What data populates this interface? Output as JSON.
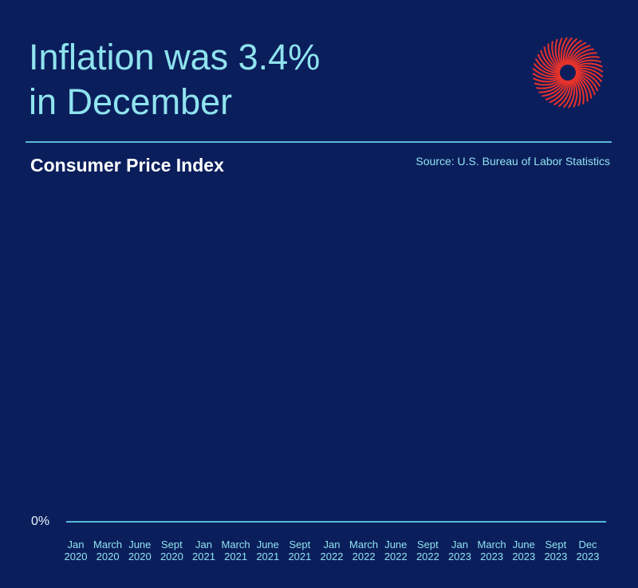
{
  "headline": {
    "line1": "Inflation was 3.4%",
    "line2": "in December"
  },
  "subtitle": "Consumer Price Index",
  "source": "Source: U.S. Bureau of Labor Statistics",
  "logo_icon": "red-radial-burst-logo",
  "colors": {
    "background": "#0b1e5c",
    "text_accent": "#8fe3ee",
    "rule": "#58b8d8",
    "logo": "#e8322a"
  },
  "chart_data": {
    "type": "line",
    "title": "",
    "xlabel": "",
    "ylabel": "",
    "y_tick_labels": [
      "0%"
    ],
    "ylim": [
      0,
      10
    ],
    "grid": false,
    "categories": [
      [
        "Jan",
        "2020"
      ],
      [
        "March",
        "2020"
      ],
      [
        "June",
        "2020"
      ],
      [
        "Sept",
        "2020"
      ],
      [
        "Jan",
        "2021"
      ],
      [
        "March",
        "2021"
      ],
      [
        "June",
        "2021"
      ],
      [
        "Sept",
        "2021"
      ],
      [
        "Jan",
        "2022"
      ],
      [
        "March",
        "2022"
      ],
      [
        "June",
        "2022"
      ],
      [
        "Sept",
        "2022"
      ],
      [
        "Jan",
        "2023"
      ],
      [
        "March",
        "2023"
      ],
      [
        "June",
        "2023"
      ],
      [
        "Sept",
        "2023"
      ],
      [
        "Dec",
        "2023"
      ]
    ],
    "series": []
  }
}
